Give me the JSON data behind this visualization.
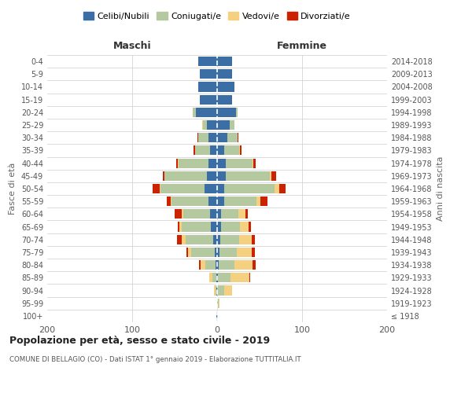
{
  "age_groups": [
    "100+",
    "95-99",
    "90-94",
    "85-89",
    "80-84",
    "75-79",
    "70-74",
    "65-69",
    "60-64",
    "55-59",
    "50-54",
    "45-49",
    "40-44",
    "35-39",
    "30-34",
    "25-29",
    "20-24",
    "15-19",
    "10-14",
    "5-9",
    "0-4"
  ],
  "birth_years": [
    "≤ 1918",
    "1919-1923",
    "1924-1928",
    "1929-1933",
    "1934-1938",
    "1939-1943",
    "1944-1948",
    "1949-1953",
    "1954-1958",
    "1959-1963",
    "1964-1968",
    "1969-1973",
    "1974-1978",
    "1979-1983",
    "1984-1988",
    "1989-1993",
    "1994-1998",
    "1999-2003",
    "2004-2008",
    "2009-2013",
    "2014-2018"
  ],
  "colors": {
    "celibi": "#3a6ea5",
    "coniugati": "#b5c9a0",
    "vedovi": "#f5d080",
    "divorziati": "#cc2200"
  },
  "legend_labels": [
    "Celibi/Nubili",
    "Coniugati/e",
    "Vedovi/e",
    "Divorziati/e"
  ],
  "maschi": {
    "celibi": [
      1,
      0,
      1,
      1,
      2,
      3,
      5,
      7,
      8,
      10,
      15,
      12,
      10,
      8,
      10,
      12,
      25,
      20,
      22,
      20,
      22
    ],
    "coniugati": [
      0,
      0,
      1,
      5,
      12,
      28,
      32,
      35,
      32,
      44,
      52,
      50,
      35,
      18,
      12,
      5,
      4,
      0,
      0,
      0,
      0
    ],
    "vedovi": [
      0,
      0,
      2,
      3,
      5,
      3,
      5,
      2,
      2,
      1,
      1,
      0,
      1,
      0,
      0,
      1,
      0,
      0,
      0,
      0,
      0
    ],
    "divorziati": [
      0,
      0,
      0,
      0,
      2,
      2,
      5,
      2,
      8,
      4,
      8,
      2,
      2,
      2,
      1,
      0,
      0,
      0,
      0,
      0,
      0
    ]
  },
  "femmine": {
    "nubili": [
      0,
      0,
      0,
      1,
      2,
      3,
      4,
      5,
      5,
      8,
      8,
      10,
      10,
      8,
      12,
      15,
      22,
      18,
      20,
      18,
      18
    ],
    "coniugate": [
      0,
      2,
      8,
      15,
      18,
      20,
      22,
      22,
      20,
      38,
      60,
      52,
      32,
      18,
      12,
      5,
      2,
      0,
      0,
      0,
      0
    ],
    "vedove": [
      0,
      1,
      10,
      22,
      22,
      18,
      15,
      10,
      8,
      5,
      5,
      2,
      1,
      1,
      0,
      0,
      0,
      0,
      0,
      0,
      0
    ],
    "divorziate": [
      0,
      0,
      0,
      1,
      3,
      3,
      3,
      3,
      3,
      8,
      8,
      5,
      2,
      2,
      1,
      0,
      0,
      0,
      0,
      0,
      0
    ]
  },
  "xlim": 200,
  "title": "Popolazione per età, sesso e stato civile - 2019",
  "subtitle": "COMUNE DI BELLAGIO (CO) - Dati ISTAT 1° gennaio 2019 - Elaborazione TUTTITALIA.IT",
  "ylabel_left": "Fasce di età",
  "ylabel_right": "Anni di nascita",
  "xlabel_maschi": "Maschi",
  "xlabel_femmine": "Femmine",
  "bg_color": "#ffffff",
  "grid_color": "#cccccc",
  "bar_height": 0.75
}
